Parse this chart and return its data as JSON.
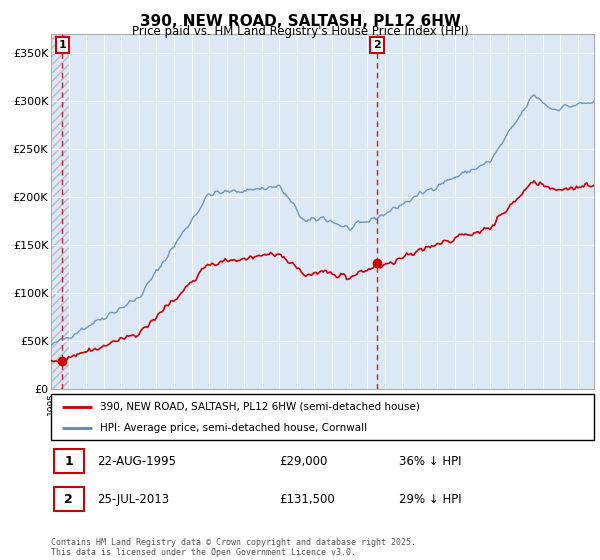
{
  "title": "390, NEW ROAD, SALTASH, PL12 6HW",
  "subtitle": "Price paid vs. HM Land Registry's House Price Index (HPI)",
  "background_color": "#ffffff",
  "plot_bg_color": "#dce8f5",
  "hatch_color": "#b0bcd0",
  "grid_color": "#ffffff",
  "ylim": [
    0,
    370000
  ],
  "yticks": [
    0,
    50000,
    100000,
    150000,
    200000,
    250000,
    300000,
    350000
  ],
  "ytick_labels": [
    "£0",
    "£50K",
    "£100K",
    "£150K",
    "£200K",
    "£250K",
    "£300K",
    "£350K"
  ],
  "sale1_year": 1995.64,
  "sale1_price": 29000,
  "sale2_year": 2013.57,
  "sale2_price": 131500,
  "sale1_label": "1",
  "sale2_label": "2",
  "red_line_color": "#cc0000",
  "blue_line_color": "#5588bb",
  "marker_color": "#cc0000",
  "dashed_line_color": "#cc2222",
  "legend1_text": "390, NEW ROAD, SALTASH, PL12 6HW (semi-detached house)",
  "legend2_text": "HPI: Average price, semi-detached house, Cornwall",
  "table_row1": [
    "1",
    "22-AUG-1995",
    "£29,000",
    "36% ↓ HPI"
  ],
  "table_row2": [
    "2",
    "25-JUL-2013",
    "£131,500",
    "29% ↓ HPI"
  ],
  "footer_text": "Contains HM Land Registry data © Crown copyright and database right 2025.\nThis data is licensed under the Open Government Licence v3.0."
}
